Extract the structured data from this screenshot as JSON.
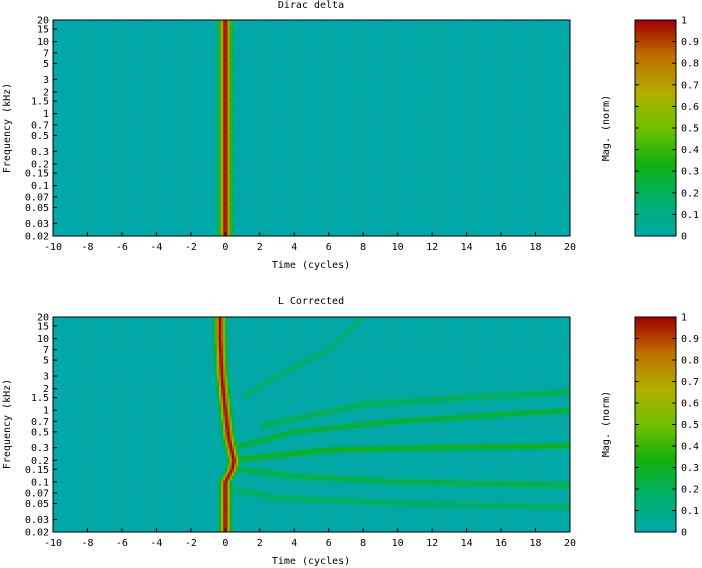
{
  "chart_data": [
    {
      "type": "heatmap",
      "title": "Dirac delta",
      "xlabel": "Time (cycles)",
      "ylabel": "Frequency (kHz)",
      "colorbar_label": "Mag. (norm)",
      "xlim": [
        -10,
        20
      ],
      "ylim": [
        0.02,
        20
      ],
      "y_scale": "log",
      "grid": true,
      "x_ticks": [
        "-10",
        "-8",
        "-6",
        "-4",
        "-2",
        "0",
        "2",
        "4",
        "6",
        "8",
        "10",
        "12",
        "14",
        "16",
        "18",
        "20"
      ],
      "y_ticks": [
        "0.02",
        "0.03",
        "0.05",
        "0.07",
        "0.1",
        "0.15",
        "0.2",
        "0.3",
        "0.5",
        "0.7",
        "1",
        "1.5",
        "2",
        "3",
        "5",
        "7",
        "10",
        "15",
        "20"
      ],
      "colorbar_ticks": [
        "0",
        "0.1",
        "0.2",
        "0.3",
        "0.4",
        "0.5",
        "0.6",
        "0.7",
        "0.8",
        "0.9",
        "1"
      ],
      "colorbar_range": [
        0,
        1
      ],
      "colormap": [
        "#00a8a8",
        "#00b070",
        "#10b010",
        "#70c000",
        "#b0b000",
        "#c07000",
        "#a00000"
      ],
      "ridges": [
        {
          "points": [
            [
              0,
              0.02
            ],
            [
              0,
              20
            ]
          ],
          "peak": 1.0,
          "width": 0.45
        }
      ]
    },
    {
      "type": "heatmap",
      "title": "L Corrected",
      "xlabel": "Time (cycles)",
      "ylabel": "Frequency (kHz)",
      "colorbar_label": "Mag. (norm)",
      "xlim": [
        -10,
        20
      ],
      "ylim": [
        0.02,
        20
      ],
      "y_scale": "log",
      "grid": true,
      "x_ticks": [
        "-10",
        "-8",
        "-6",
        "-4",
        "-2",
        "0",
        "2",
        "4",
        "6",
        "8",
        "10",
        "12",
        "14",
        "16",
        "18",
        "20"
      ],
      "y_ticks": [
        "0.02",
        "0.03",
        "0.05",
        "0.07",
        "0.1",
        "0.15",
        "0.2",
        "0.3",
        "0.5",
        "0.7",
        "1",
        "1.5",
        "2",
        "3",
        "5",
        "7",
        "10",
        "15",
        "20"
      ],
      "colorbar_ticks": [
        "0",
        "0.1",
        "0.2",
        "0.3",
        "0.4",
        "0.5",
        "0.6",
        "0.7",
        "0.8",
        "0.9",
        "1"
      ],
      "colorbar_range": [
        0,
        1
      ],
      "colormap": [
        "#00a8a8",
        "#00b070",
        "#10b010",
        "#70c000",
        "#b0b000",
        "#c07000",
        "#a00000"
      ],
      "ridges": [
        {
          "points": [
            [
              -0.3,
              20
            ],
            [
              -0.3,
              10
            ],
            [
              -0.2,
              3
            ],
            [
              0,
              1
            ],
            [
              0.2,
              0.4
            ],
            [
              0.5,
              0.2
            ],
            [
              0.4,
              0.15
            ],
            [
              0,
              0.1
            ],
            [
              0,
              0.02
            ]
          ],
          "peak": 1.0,
          "width": 0.4
        },
        {
          "points": [
            [
              0.3,
              0.2
            ],
            [
              2,
              0.22
            ],
            [
              6,
              0.28
            ],
            [
              12,
              0.3
            ],
            [
              20,
              0.32
            ]
          ],
          "peak": 0.35,
          "width": 0.5
        },
        {
          "points": [
            [
              0.5,
              0.3
            ],
            [
              4,
              0.5
            ],
            [
              10,
              0.7
            ],
            [
              20,
              1
            ]
          ],
          "peak": 0.3,
          "width": 0.5
        },
        {
          "points": [
            [
              1,
              1.5
            ],
            [
              3,
              3
            ],
            [
              6,
              7
            ],
            [
              8,
              20
            ]
          ],
          "peak": 0.2,
          "width": 0.5
        },
        {
          "points": [
            [
              0.5,
              0.15
            ],
            [
              4,
              0.12
            ],
            [
              10,
              0.1
            ],
            [
              20,
              0.09
            ]
          ],
          "peak": 0.25,
          "width": 0.6
        },
        {
          "points": [
            [
              0.3,
              0.08
            ],
            [
              3,
              0.06
            ],
            [
              10,
              0.05
            ],
            [
              20,
              0.045
            ]
          ],
          "peak": 0.2,
          "width": 0.6
        },
        {
          "points": [
            [
              2,
              0.6
            ],
            [
              8,
              1.2
            ],
            [
              14,
              1.5
            ],
            [
              20,
              1.8
            ]
          ],
          "peak": 0.22,
          "width": 0.6
        }
      ]
    }
  ]
}
